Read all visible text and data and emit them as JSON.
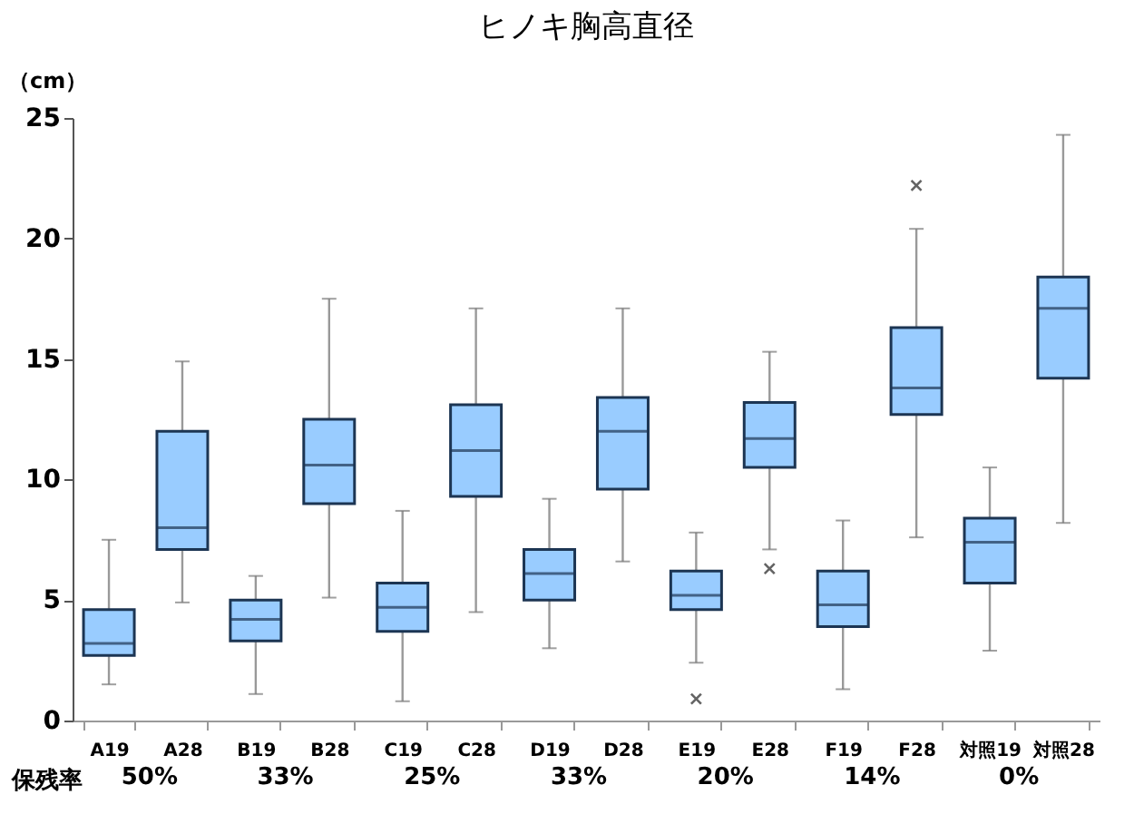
{
  "chart_data": {
    "type": "box",
    "title": "ヒノキ胸高直径",
    "ylabel": "（cm）",
    "categories": [
      "A19",
      "A28",
      "B19",
      "B28",
      "C19",
      "C28",
      "D19",
      "D28",
      "E19",
      "E28",
      "F19",
      "F28",
      "対照19",
      "対照28"
    ],
    "boxes": [
      {
        "low": 1.5,
        "q1": 2.7,
        "median": 3.2,
        "q3": 4.6,
        "high": 7.5
      },
      {
        "low": 4.9,
        "q1": 7.1,
        "median": 8.0,
        "q3": 12.0,
        "high": 14.9
      },
      {
        "low": 1.1,
        "q1": 3.3,
        "median": 4.2,
        "q3": 5.0,
        "high": 6.0
      },
      {
        "low": 5.1,
        "q1": 9.0,
        "median": 10.6,
        "q3": 12.5,
        "high": 17.5
      },
      {
        "low": 0.8,
        "q1": 3.7,
        "median": 4.7,
        "q3": 5.7,
        "high": 8.7
      },
      {
        "low": 4.5,
        "q1": 9.3,
        "median": 11.2,
        "q3": 13.1,
        "high": 17.1
      },
      {
        "low": 3.0,
        "q1": 5.0,
        "median": 6.1,
        "q3": 7.1,
        "high": 9.2
      },
      {
        "low": 6.6,
        "q1": 9.6,
        "median": 12.0,
        "q3": 13.4,
        "high": 17.1
      },
      {
        "low": 2.4,
        "q1": 4.6,
        "median": 5.2,
        "q3": 6.2,
        "high": 7.8,
        "outliers": [
          0.9
        ]
      },
      {
        "low": 7.1,
        "q1": 10.5,
        "median": 11.7,
        "q3": 13.2,
        "high": 15.3,
        "outliers": [
          6.3
        ]
      },
      {
        "low": 1.3,
        "q1": 3.9,
        "median": 4.8,
        "q3": 6.2,
        "high": 8.3
      },
      {
        "low": 7.6,
        "q1": 12.7,
        "median": 13.8,
        "q3": 16.3,
        "high": 20.4,
        "outliers": [
          22.2
        ]
      },
      {
        "low": 2.9,
        "q1": 5.7,
        "median": 7.4,
        "q3": 8.4,
        "high": 10.5
      },
      {
        "low": 8.2,
        "q1": 14.2,
        "median": 17.1,
        "q3": 18.4,
        "high": 24.3
      }
    ],
    "color": "#99ccff",
    "ylim": [
      0,
      25
    ],
    "yticks": [
      0,
      5,
      10,
      15,
      20,
      25
    ],
    "annotations": [
      "保残率",
      "50%",
      "33%",
      "25%",
      "33%",
      "20%",
      "14%",
      "0%"
    ]
  }
}
